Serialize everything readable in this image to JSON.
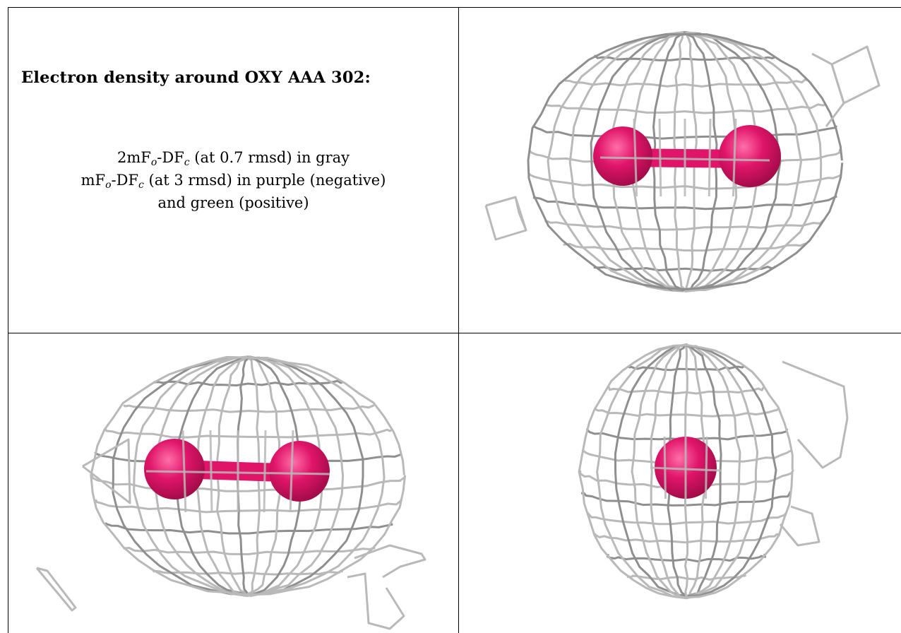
{
  "heading": "Electron density around OXY AAA 302:",
  "legend": {
    "line1": {
      "prefix": "2mF",
      "sub1": "o",
      "mid": "-DF",
      "sub2": "c",
      "suffix": " (at 0.7 rmsd) in gray"
    },
    "line2": {
      "prefix": "mF",
      "sub1": "o",
      "mid": "-DF",
      "sub2": "c",
      "suffix": " (at 3 rmsd) in purple (negative)"
    },
    "line3": "and green (positive)"
  },
  "colors": {
    "mesh": "#b9b9b9",
    "mesh_dark": "#8f8f8f",
    "atom": "#e0156a",
    "atom_highlight": "#ff6fa8",
    "atom_shadow": "#9b0a45",
    "grid_line": "#000000"
  },
  "views": [
    {
      "name": "oxygen-side-view-1"
    },
    {
      "name": "oxygen-side-view-2"
    },
    {
      "name": "oxygen-end-on-view"
    }
  ]
}
